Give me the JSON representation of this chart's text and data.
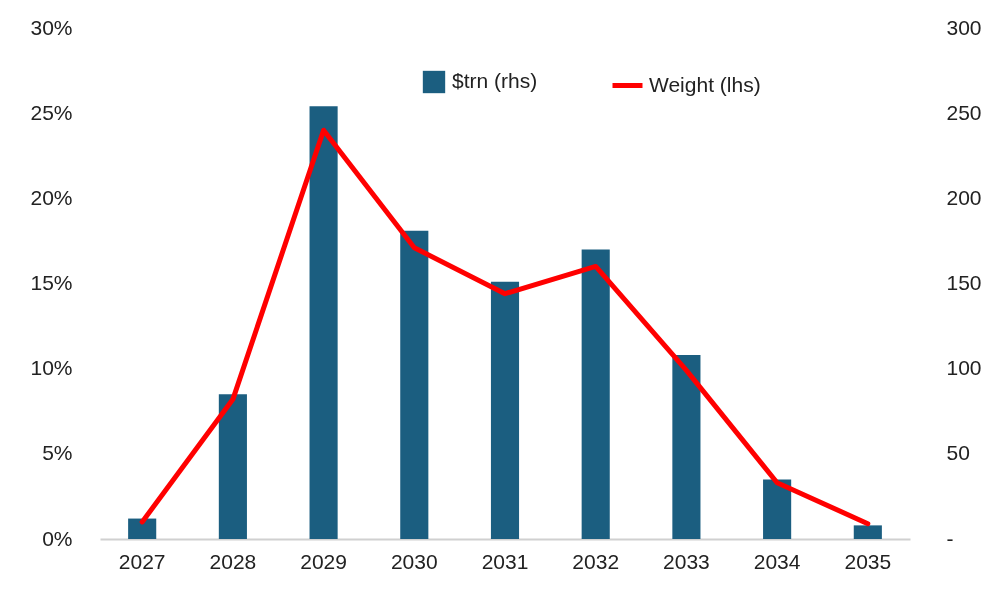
{
  "chart_data": {
    "type": "bar",
    "categories": [
      "2027",
      "2028",
      "2029",
      "2030",
      "2031",
      "2032",
      "2033",
      "2034",
      "2035"
    ],
    "series": [
      {
        "name": "$trn (rhs)",
        "axis": "y2",
        "color": "#1b5e80",
        "values": [
          12,
          85,
          254,
          181,
          151,
          170,
          108,
          35,
          8
        ]
      },
      {
        "name": "Weight (lhs)",
        "type": "line",
        "color": "#ff0000",
        "values": [
          1.0,
          8.2,
          24.0,
          17.1,
          14.4,
          16.0,
          9.9,
          3.3,
          0.9
        ]
      }
    ],
    "ylim": [
      0,
      30
    ],
    "yticks": [
      {
        "value": 0,
        "label": "0%"
      },
      {
        "value": 5,
        "label": "5%"
      },
      {
        "value": 10,
        "label": "10%"
      },
      {
        "value": 15,
        "label": "15%"
      },
      {
        "value": 20,
        "label": "20%"
      },
      {
        "value": 25,
        "label": "25%"
      },
      {
        "value": 30,
        "label": "30%"
      }
    ],
    "y2lim": [
      0,
      300
    ],
    "y2ticks": [
      {
        "value": 0,
        "label": "-"
      },
      50,
      100,
      150,
      200,
      250,
      300
    ],
    "legend": "top",
    "grid": false,
    "marker": "none",
    "line_style": "solid"
  }
}
